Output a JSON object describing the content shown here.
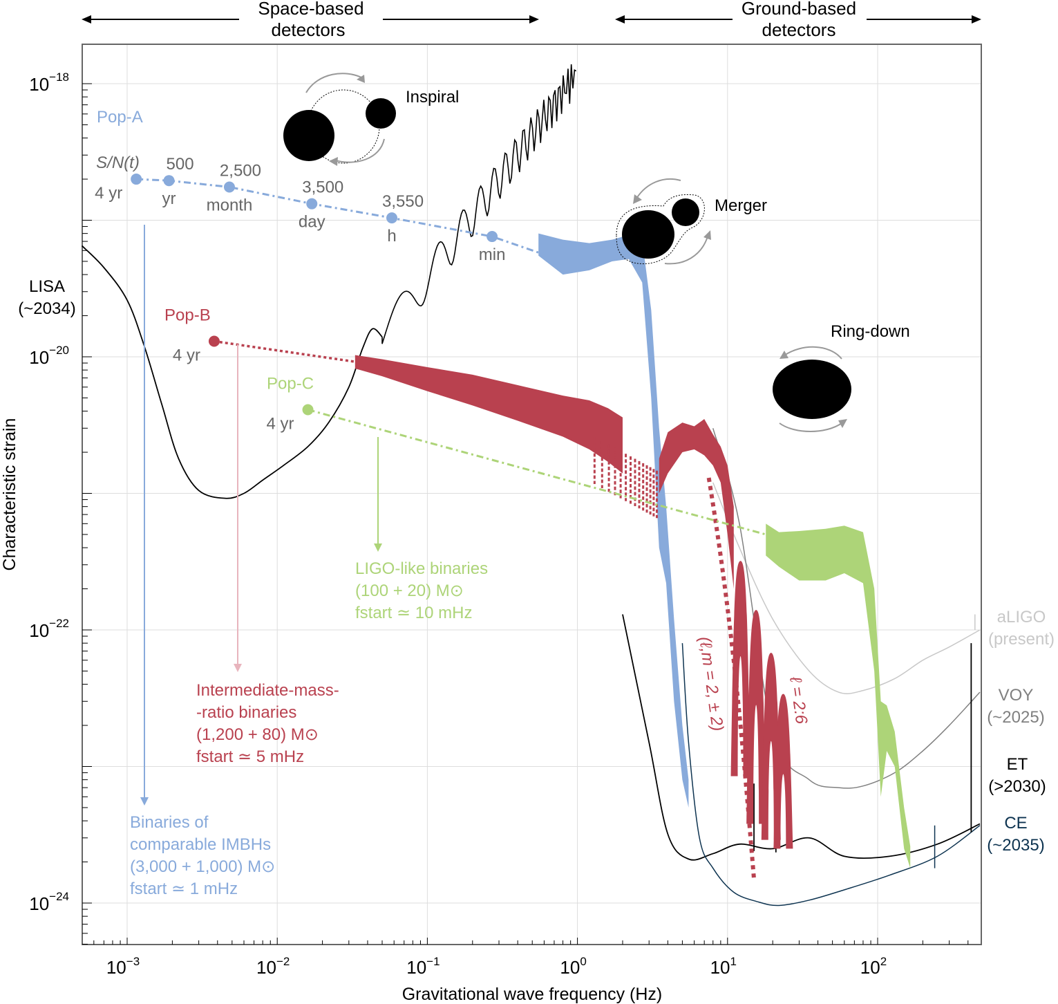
{
  "header": {
    "space": {
      "line1": "Space-based",
      "line2": "detectors"
    },
    "ground": {
      "line1": "Ground-based",
      "line2": "detectors"
    }
  },
  "colors": {
    "popA": "#88aadb",
    "popB": "#b9414f",
    "popC": "#add478",
    "lisa": "#000000",
    "aligo": "#c8c8c8",
    "voy": "#808080",
    "et": "#000000",
    "ce": "#0d3350",
    "grid": "#dddddd",
    "label_gray": "#666666"
  },
  "chart_data": {
    "type": "line",
    "title": "",
    "xlabel": "Gravitational wave frequency (Hz)",
    "ylabel": "Characteristic strain",
    "xscale": "log",
    "yscale": "log",
    "xlim": [
      0.0005,
      480
    ],
    "ylim": [
      1.6e-25,
      3e-18
    ],
    "grid": true,
    "x_ticks": [
      {
        "value": 0.001,
        "base": "10",
        "exp": "−3"
      },
      {
        "value": 0.01,
        "base": "10",
        "exp": "−2"
      },
      {
        "value": 0.1,
        "base": "10",
        "exp": "−1"
      },
      {
        "value": 1,
        "base": "10",
        "exp": "0"
      },
      {
        "value": 10,
        "base": "10",
        "exp": "1"
      },
      {
        "value": 100,
        "base": "10",
        "exp": "2"
      }
    ],
    "y_ticks": [
      {
        "value": 1e-18,
        "base": "10",
        "exp": "−18"
      },
      {
        "value": 1e-20,
        "base": "10",
        "exp": "−20"
      },
      {
        "value": 1e-22,
        "base": "10",
        "exp": "−22"
      },
      {
        "value": 1e-24,
        "base": "10",
        "exp": "−24"
      }
    ],
    "detectors": [
      {
        "name": "LISA",
        "label": "LISA",
        "sub": "(~2034)",
        "color_key": "lisa",
        "x": [
          0.0005,
          0.0007,
          0.001,
          0.0013,
          0.0017,
          0.0022,
          0.003,
          0.0045,
          0.006,
          0.008,
          0.011,
          0.016,
          0.022,
          0.03,
          0.037,
          0.043,
          0.05
        ],
        "y": [
          6.5e-20,
          4.5e-20,
          2.6e-20,
          1.2e-20,
          4.5e-21,
          1.8e-21,
          1.05e-21,
          9.2e-22,
          1e-21,
          1.25e-21,
          1.6e-21,
          2.2e-21,
          3.3e-21,
          6e-21,
          1.15e-20,
          1.6e-20,
          1.4e-20
        ]
      },
      {
        "name": "aLIGO",
        "label": "aLIGO",
        "sub": "(present)",
        "color_key": "aligo",
        "x": [
          8,
          12,
          20,
          35,
          55,
          80,
          130,
          200,
          300,
          480
        ],
        "y": [
          1.2e-21,
          4e-22,
          1.2e-22,
          5e-23,
          3.5e-23,
          3.6e-23,
          4.4e-23,
          6e-23,
          7.5e-23,
          1e-22
        ]
      },
      {
        "name": "VOY",
        "label": "VOY",
        "sub": "(~2025)",
        "color_key": "voy",
        "x": [
          8,
          12,
          20,
          35,
          55,
          80,
          130,
          200,
          300,
          480
        ],
        "y": [
          3e-21,
          6e-22,
          1.8e-23,
          8e-24,
          7e-24,
          7.2e-24,
          9e-24,
          1.3e-23,
          2e-23,
          3.5e-23
        ]
      },
      {
        "name": "ET",
        "label": "ET",
        "sub": "(>2030)",
        "color_key": "et",
        "x": [
          2,
          3,
          4,
          5.5,
          8,
          12,
          20,
          35,
          60,
          120,
          250,
          480
        ],
        "y": [
          1.3e-22,
          1.5e-23,
          3.2e-24,
          2.1e-24,
          2.3e-24,
          2.7e-24,
          2.5e-24,
          3e-24,
          2.2e-24,
          2.2e-24,
          2.7e-24,
          3.8e-24
        ]
      },
      {
        "name": "CE",
        "label": "CE",
        "sub": "(~2035)",
        "color_key": "ce",
        "x": [
          5,
          5.5,
          6.5,
          8,
          11,
          16,
          22,
          35,
          60,
          120,
          250,
          480
        ],
        "y": [
          8e-23,
          1.5e-23,
          3e-24,
          1.8e-24,
          1.2e-24,
          1.02e-24,
          9.6e-25,
          1.05e-24,
          1.25e-24,
          1.6e-24,
          2.2e-24,
          3.7e-24
        ]
      }
    ],
    "populations": [
      {
        "name": "Pop-A",
        "color_key": "popA",
        "points": [
          {
            "f": 0.00115,
            "h": 2e-19,
            "snr": "S/N(t)",
            "time": "4 yr"
          },
          {
            "f": 0.0019,
            "h": 1.95e-19,
            "snr": "500",
            "time": "yr"
          },
          {
            "f": 0.0048,
            "h": 1.75e-19,
            "snr": "2,500",
            "time": "month"
          },
          {
            "f": 0.017,
            "h": 1.32e-19,
            "snr": "3,500",
            "time": "day"
          },
          {
            "f": 0.058,
            "h": 1.04e-19,
            "snr": "3,550",
            "time": "h"
          },
          {
            "f": 0.27,
            "h": 7.6e-20,
            "snr": "",
            "time": "min"
          }
        ],
        "description": [
          "Binaries of",
          "comparable IMBHs",
          "(3,000 + 1,000) M⊙",
          "fstart ≃ 1 mHz"
        ],
        "f_start_hz": 0.001
      },
      {
        "name": "Pop-B",
        "color_key": "popB",
        "points": [
          {
            "f": 0.0038,
            "h": 1.3e-20,
            "snr": "",
            "time": "4 yr"
          }
        ],
        "description": [
          "Intermediate-mass-",
          "-ratio binaries",
          "(1,200 + 80) M⊙",
          "fstart ≃ 5 mHz"
        ],
        "f_start_hz": 0.005
      },
      {
        "name": "Pop-C",
        "color_key": "popC",
        "points": [
          {
            "f": 0.016,
            "h": 4.1e-21,
            "snr": "",
            "time": "4 yr"
          }
        ],
        "description": [
          "LIGO-like binaries",
          "(100 + 20) M⊙",
          "fstart ≃ 10 mHz"
        ],
        "f_start_hz": 0.01
      }
    ],
    "mode_labels": {
      "dominant": "(ℓ,m = 2, ± 2)",
      "higher": "ℓ = 2:6"
    },
    "phase_labels": [
      "Inspiral",
      "Merger",
      "Ring-down"
    ]
  }
}
